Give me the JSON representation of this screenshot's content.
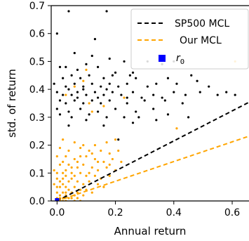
{
  "chart_data": {
    "type": "scatter",
    "xlabel": "Annual return",
    "ylabel": "std. of return",
    "xlim": [
      -0.02,
      0.66
    ],
    "ylim": [
      0,
      0.7
    ],
    "x_ticks": [
      0.0,
      0.2,
      0.4,
      0.6
    ],
    "x_tick_labels": [
      "0.0",
      "0.2",
      "0.4",
      "0.6"
    ],
    "y_ticks": [
      0.0,
      0.1,
      0.2,
      0.3,
      0.4,
      0.5,
      0.6,
      0.7
    ],
    "y_tick_labels": [
      "0.0",
      "0.1",
      "0.2",
      "0.3",
      "0.4",
      "0.5",
      "0.6",
      "0.7"
    ],
    "legend_position": "top-right",
    "lines": [
      {
        "name": "SP500 MCL",
        "color": "#000000",
        "dash": true,
        "points": [
          [
            0,
            0
          ],
          [
            0.66,
            0.355
          ]
        ]
      },
      {
        "name": "Our MCL",
        "color": "#ffa500",
        "dash": true,
        "points": [
          [
            0,
            0
          ],
          [
            0.66,
            0.233
          ]
        ]
      }
    ],
    "markers": [
      {
        "name": "r_0",
        "label_base": "r",
        "label_sub": "0",
        "color": "#0000ff",
        "x": 0.0,
        "y": 0.0
      }
    ],
    "series": [
      {
        "color": "#000000",
        "points": [
          [
            0.04,
            0.68
          ],
          [
            0.17,
            0.68
          ],
          [
            0.0,
            0.6
          ],
          [
            0.13,
            0.58
          ],
          [
            0.06,
            0.53
          ],
          [
            0.12,
            0.52
          ],
          [
            0.18,
            0.51
          ],
          [
            0.23,
            0.5
          ],
          [
            0.31,
            0.5
          ],
          [
            0.36,
            0.49
          ],
          [
            0.4,
            0.5
          ],
          [
            0.43,
            0.5
          ],
          [
            0.01,
            0.48
          ],
          [
            0.03,
            0.48
          ],
          [
            0.07,
            0.47
          ],
          [
            0.1,
            0.49
          ],
          [
            0.14,
            0.48
          ],
          [
            0.2,
            0.46
          ],
          [
            0.25,
            0.45
          ],
          [
            0.26,
            0.46
          ],
          [
            0.02,
            0.44
          ],
          [
            0.05,
            0.45
          ],
          [
            0.08,
            0.44
          ],
          [
            0.11,
            0.45
          ],
          [
            0.16,
            0.44
          ],
          [
            0.19,
            0.45
          ],
          [
            0.27,
            0.44
          ],
          [
            0.38,
            0.44
          ],
          [
            0.46,
            0.45
          ],
          [
            0.48,
            0.43
          ],
          [
            -0.01,
            0.42
          ],
          [
            0.03,
            0.41
          ],
          [
            0.06,
            0.42
          ],
          [
            0.09,
            0.41
          ],
          [
            0.12,
            0.42
          ],
          [
            0.15,
            0.41
          ],
          [
            0.18,
            0.42
          ],
          [
            0.21,
            0.41
          ],
          [
            0.24,
            0.42
          ],
          [
            0.31,
            0.41
          ],
          [
            0.34,
            0.42
          ],
          [
            0.41,
            0.42
          ],
          [
            0.52,
            0.41
          ],
          [
            0.0,
            0.39
          ],
          [
            0.02,
            0.38
          ],
          [
            0.04,
            0.4
          ],
          [
            0.07,
            0.39
          ],
          [
            0.1,
            0.38
          ],
          [
            0.13,
            0.39
          ],
          [
            0.16,
            0.38
          ],
          [
            0.19,
            0.39
          ],
          [
            0.22,
            0.38
          ],
          [
            0.26,
            0.39
          ],
          [
            0.29,
            0.37
          ],
          [
            0.33,
            0.38
          ],
          [
            0.36,
            0.37
          ],
          [
            0.4,
            0.39
          ],
          [
            0.44,
            0.38
          ],
          [
            0.49,
            0.39
          ],
          [
            0.55,
            0.38
          ],
          [
            0.58,
            0.39
          ],
          [
            0.61,
            0.38
          ],
          [
            0.01,
            0.36
          ],
          [
            0.03,
            0.35
          ],
          [
            0.06,
            0.36
          ],
          [
            0.09,
            0.35
          ],
          [
            0.12,
            0.36
          ],
          [
            0.15,
            0.35
          ],
          [
            0.18,
            0.36
          ],
          [
            0.24,
            0.35
          ],
          [
            0.3,
            0.36
          ],
          [
            0.37,
            0.36
          ],
          [
            0.43,
            0.35
          ],
          [
            0.0,
            0.33
          ],
          [
            0.04,
            0.32
          ],
          [
            0.08,
            0.33
          ],
          [
            0.14,
            0.32
          ],
          [
            0.2,
            0.33
          ],
          [
            0.27,
            0.32
          ],
          [
            0.33,
            0.33
          ],
          [
            0.38,
            0.31
          ],
          [
            0.45,
            0.3
          ],
          [
            0.05,
            0.3
          ],
          [
            0.1,
            0.29
          ],
          [
            0.17,
            0.3
          ],
          [
            0.23,
            0.3
          ],
          [
            0.28,
            0.3
          ],
          [
            0.16,
            0.27
          ],
          [
            0.26,
            0.28
          ],
          [
            0.34,
            0.29
          ],
          [
            0.04,
            0.27
          ],
          [
            0.21,
            0.22
          ],
          [
            0.01,
            0.31
          ],
          [
            0.11,
            0.31
          ],
          [
            0.24,
            0.37
          ],
          [
            0.07,
            0.37
          ],
          [
            0.05,
            0.38
          ],
          [
            0.14,
            0.37
          ],
          [
            0.09,
            0.4
          ],
          [
            0.17,
            0.4
          ]
        ]
      },
      {
        "color": "#ffa500",
        "points": [
          [
            0.1,
            0.47
          ],
          [
            0.09,
            0.43
          ],
          [
            0.06,
            0.41
          ],
          [
            0.03,
            0.38
          ],
          [
            0.11,
            0.35
          ],
          [
            0.16,
            0.34
          ],
          [
            0.23,
            0.37
          ],
          [
            0.41,
            0.26
          ],
          [
            0.61,
            0.5
          ],
          [
            0.12,
            0.32
          ],
          [
            0.02,
            0.22
          ],
          [
            0.06,
            0.21
          ],
          [
            0.09,
            0.2
          ],
          [
            0.13,
            0.2
          ],
          [
            0.17,
            0.21
          ],
          [
            0.2,
            0.22
          ],
          [
            0.01,
            0.19
          ],
          [
            0.04,
            0.18
          ],
          [
            0.08,
            0.19
          ],
          [
            0.11,
            0.18
          ],
          [
            0.15,
            0.18
          ],
          [
            0.18,
            0.17
          ],
          [
            0.0,
            0.16
          ],
          [
            0.03,
            0.16
          ],
          [
            0.06,
            0.15
          ],
          [
            0.1,
            0.16
          ],
          [
            0.13,
            0.15
          ],
          [
            0.16,
            0.14
          ],
          [
            0.19,
            0.15
          ],
          [
            0.22,
            0.14
          ],
          [
            0.01,
            0.13
          ],
          [
            0.02,
            0.14
          ],
          [
            0.04,
            0.13
          ],
          [
            0.07,
            0.12
          ],
          [
            0.09,
            0.13
          ],
          [
            0.12,
            0.12
          ],
          [
            0.14,
            0.11
          ],
          [
            0.17,
            0.12
          ],
          [
            0.2,
            0.11
          ],
          [
            -0.01,
            0.11
          ],
          [
            0.0,
            0.1
          ],
          [
            0.02,
            0.1
          ],
          [
            0.03,
            0.11
          ],
          [
            0.05,
            0.1
          ],
          [
            0.06,
            0.09
          ],
          [
            0.08,
            0.1
          ],
          [
            0.1,
            0.09
          ],
          [
            0.11,
            0.1
          ],
          [
            0.13,
            0.09
          ],
          [
            0.15,
            0.08
          ],
          [
            0.18,
            0.09
          ],
          [
            0.0,
            0.08
          ],
          [
            0.01,
            0.07
          ],
          [
            0.02,
            0.08
          ],
          [
            0.04,
            0.07
          ],
          [
            0.05,
            0.08
          ],
          [
            0.07,
            0.07
          ],
          [
            0.09,
            0.06
          ],
          [
            0.11,
            0.07
          ],
          [
            0.14,
            0.06
          ],
          [
            0.16,
            0.05
          ],
          [
            -0.01,
            0.06
          ],
          [
            0.0,
            0.05
          ],
          [
            0.01,
            0.05
          ],
          [
            0.02,
            0.06
          ],
          [
            0.03,
            0.05
          ],
          [
            0.04,
            0.04
          ],
          [
            0.06,
            0.05
          ],
          [
            0.08,
            0.04
          ],
          [
            0.1,
            0.04
          ],
          [
            0.12,
            0.03
          ],
          [
            0.0,
            0.03
          ],
          [
            0.01,
            0.02
          ],
          [
            0.02,
            0.03
          ],
          [
            0.03,
            0.02
          ],
          [
            0.05,
            0.03
          ],
          [
            0.06,
            0.02
          ],
          [
            0.07,
            0.03
          ],
          [
            0.09,
            0.02
          ],
          [
            0.0,
            0.01
          ],
          [
            0.01,
            0.01
          ],
          [
            0.02,
            0.01
          ],
          [
            0.03,
            0.0
          ],
          [
            0.04,
            0.01
          ],
          [
            0.05,
            0.01
          ],
          [
            0.06,
            0.0
          ],
          [
            0.0,
            0.0
          ],
          [
            0.01,
            0.0
          ],
          [
            0.02,
            0.0
          ],
          [
            0.08,
            0.0
          ],
          [
            0.03,
            0.09
          ],
          [
            0.05,
            0.12
          ],
          [
            0.07,
            0.14
          ],
          [
            0.08,
            0.16
          ],
          [
            0.12,
            0.17
          ],
          [
            0.14,
            0.14
          ],
          [
            0.18,
            0.13
          ],
          [
            0.21,
            0.18
          ],
          [
            0.03,
            0.03
          ],
          [
            0.07,
            0.01
          ]
        ]
      }
    ]
  }
}
